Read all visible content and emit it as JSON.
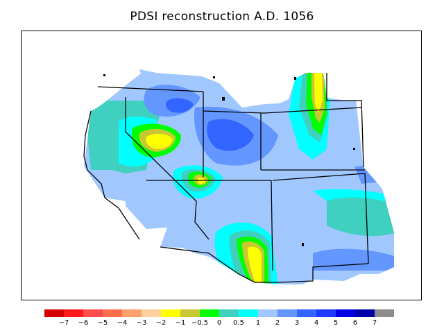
{
  "title": "PDSI reconstruction A.D. 1056",
  "colorbar": {
    "colors": [
      "#d40000",
      "#ff1a1a",
      "#ff4d4d",
      "#ff704d",
      "#ff9f6b",
      "#ffcf9f",
      "#ffff00",
      "#c8c832",
      "#00ff00",
      "#40d0c0",
      "#00ffff",
      "#a0c8ff",
      "#6496ff",
      "#3264ff",
      "#1e3cff",
      "#0000e6",
      "#0000aa",
      "#8c8c8c"
    ],
    "labels": [
      "−7",
      "−6",
      "−5",
      "−4",
      "−3",
      "−2",
      "−1",
      "−0.5",
      "0",
      "0.5",
      "1",
      "2",
      "3",
      "4",
      "5",
      "6",
      "7"
    ]
  },
  "map": {
    "background_class": "#a0c8ff",
    "regions": [
      {
        "id": "dry-great-basin",
        "level": "-1 to -2",
        "color": "#ffff00"
      },
      {
        "id": "dry-utah-colorado-border",
        "level": "-1",
        "color": "#c8c832"
      },
      {
        "id": "dry-new-mexico-southwest",
        "level": "-1",
        "color": "#c8c832"
      },
      {
        "id": "dry-nebraska",
        "level": "-1",
        "color": "#c8c832"
      },
      {
        "id": "wet-idaho-wyoming",
        "level": "3",
        "color": "#6496ff"
      }
    ]
  }
}
